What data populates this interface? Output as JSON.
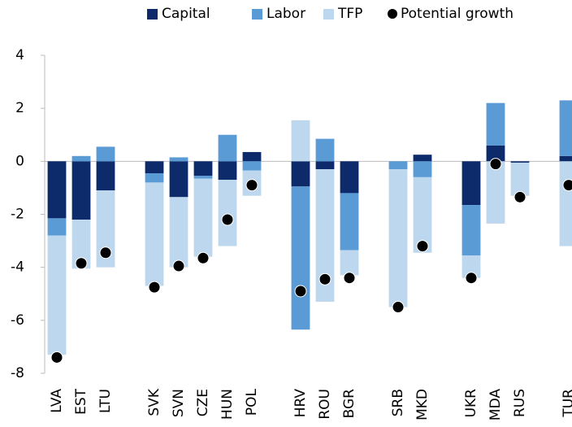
{
  "chart_data": {
    "type": "bar",
    "stacked": true,
    "categories": [
      "LVA",
      "EST",
      "LTU",
      null,
      "SVK",
      "SVN",
      "CZE",
      "HUN",
      "POL",
      null,
      "HRV",
      "ROU",
      "BGR",
      null,
      "SRB",
      "MKD",
      null,
      "UKR",
      "MDA",
      "RUS",
      null,
      "TUR"
    ],
    "series": [
      {
        "name": "Capital",
        "color": "#0d2a6b",
        "values": [
          -2.15,
          -2.2,
          -1.1,
          null,
          -0.45,
          -1.35,
          -0.55,
          -0.7,
          0.35,
          null,
          -0.95,
          -0.3,
          -1.2,
          null,
          0,
          0.25,
          null,
          -1.65,
          0.6,
          -0.05,
          null,
          0.2
        ]
      },
      {
        "name": "Labor",
        "color": "#5b9bd5",
        "values": [
          -0.65,
          0.2,
          0.55,
          null,
          -0.35,
          0.15,
          -0.1,
          1.0,
          -0.35,
          null,
          -5.4,
          0.85,
          -2.15,
          null,
          -0.3,
          -0.6,
          null,
          -1.9,
          1.6,
          0,
          null,
          2.1
        ]
      },
      {
        "name": "TFP",
        "color": "#bdd7ee",
        "values": [
          -4.5,
          -1.85,
          -2.9,
          null,
          -3.9,
          -2.65,
          -2.95,
          -2.5,
          -0.95,
          null,
          1.55,
          -5.0,
          -0.95,
          null,
          -5.2,
          -2.85,
          null,
          -0.85,
          -2.35,
          -1.25,
          null,
          -3.2
        ]
      },
      {
        "name": "Potential growth",
        "color": "#000000",
        "type": "scatter",
        "values": [
          -7.4,
          -3.85,
          -3.45,
          null,
          -4.75,
          -3.95,
          -3.65,
          -2.2,
          -0.9,
          null,
          -4.9,
          -4.45,
          -4.4,
          null,
          -5.5,
          -3.2,
          null,
          -4.4,
          -0.1,
          -1.35,
          null,
          -0.9
        ]
      }
    ],
    "ylim": [
      -8,
      4
    ],
    "yticks": [
      -8,
      -6,
      -4,
      -2,
      0,
      2,
      4
    ],
    "legend": "top"
  }
}
